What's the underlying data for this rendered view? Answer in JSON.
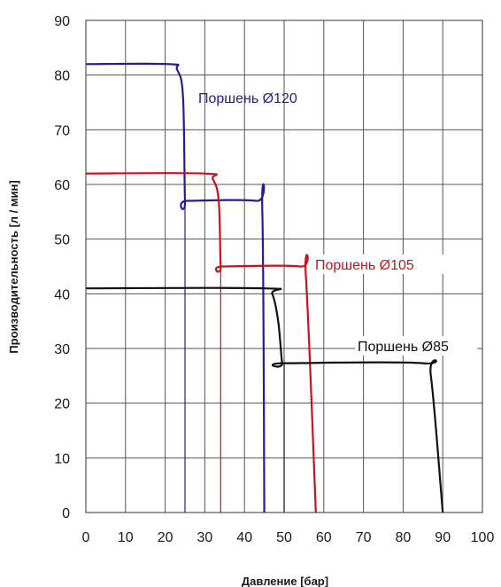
{
  "chart_data": {
    "type": "line",
    "xlabel": "Давление [бар]",
    "ylabel": "Производительность [л / мин]",
    "xlim": [
      0,
      100
    ],
    "ylim": [
      0,
      90
    ],
    "xticks": [
      0,
      10,
      20,
      30,
      40,
      50,
      60,
      70,
      80,
      90,
      100
    ],
    "yticks": [
      0,
      10,
      20,
      30,
      40,
      50,
      60,
      70,
      80,
      90
    ],
    "grid": true,
    "series": [
      {
        "name": "Поршень Ø120",
        "color": "#2e1a8f",
        "x": [
          0,
          21,
          23,
          24.5,
          25,
          25.5,
          43,
          44.5,
          45
        ],
        "y": [
          82,
          82,
          81,
          76,
          57,
          57,
          57,
          55,
          0
        ],
        "cutoff_line": {
          "x": 25,
          "y_top": 57
        }
      },
      {
        "name": "Поршень Ø105",
        "color": "#c4151c",
        "x": [
          0,
          30,
          32,
          33.5,
          34,
          34.5,
          54,
          55.5,
          58
        ],
        "y": [
          62,
          62,
          61,
          57,
          45,
          45,
          45,
          43,
          0
        ],
        "cutoff_line": {
          "x": 34,
          "y_top": 45
        }
      },
      {
        "name": "Поршень Ø85",
        "color": "#111111",
        "x": [
          0,
          45,
          47,
          48.5,
          49.5,
          50,
          85,
          87,
          90
        ],
        "y": [
          41,
          41,
          40,
          35,
          27.3,
          27.3,
          27.3,
          25,
          0
        ],
        "cutoff_line": {
          "x": 50,
          "y_top": 27.3
        }
      }
    ]
  }
}
